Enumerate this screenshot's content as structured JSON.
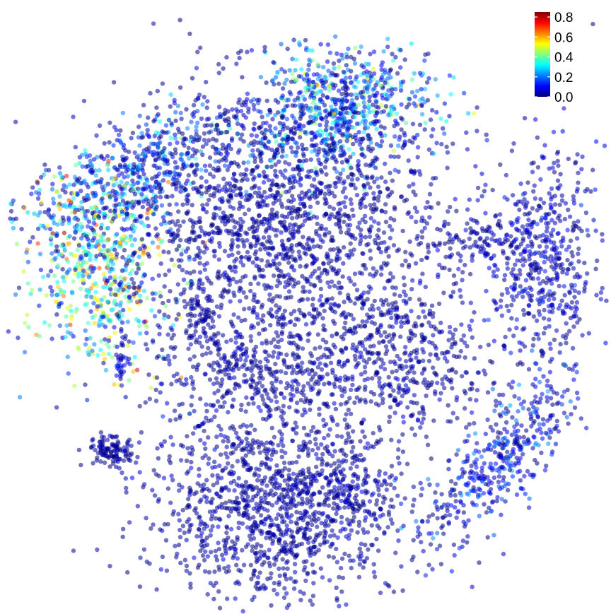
{
  "chart_data": {
    "type": "scatter",
    "title": "",
    "xlabel": "",
    "ylabel": "",
    "axes_visible": false,
    "grid": false,
    "point_alpha": 0.55,
    "colorbar": {
      "placement": "top-right",
      "range": [
        0.0,
        0.85
      ],
      "ticks": [
        0.0,
        0.2,
        0.4,
        0.6,
        0.8
      ],
      "tick_labels": [
        "0.0",
        "0.2",
        "0.4",
        "0.6",
        "0.8"
      ],
      "colormap": [
        "#00007f",
        "#0000ff",
        "#007fff",
        "#00ffff",
        "#7fff7f",
        "#ffff00",
        "#ff7f00",
        "#ff0000",
        "#7f0000"
      ]
    },
    "clusters": [
      {
        "name": "top-center",
        "x": 56.0,
        "y": 82.5,
        "sx": 8.0,
        "sy": 5.0,
        "angle": 15,
        "n": 650,
        "mean_value": 0.15,
        "value_spread": 0.15
      },
      {
        "name": "top-center-arm",
        "x": 51.0,
        "y": 88.0,
        "sx": 2.5,
        "sy": 4.0,
        "angle": 0,
        "n": 60,
        "mean_value": 0.22,
        "value_spread": 0.15
      },
      {
        "name": "top-left-upper",
        "x": 20.5,
        "y": 72.0,
        "sx": 11.5,
        "sy": 4.0,
        "angle": 28,
        "n": 560,
        "mean_value": 0.12,
        "value_spread": 0.12
      },
      {
        "name": "top-left-lower",
        "x": 15.0,
        "y": 55.5,
        "sx": 6.0,
        "sy": 8.0,
        "angle": 0,
        "n": 560,
        "mean_value": 0.34,
        "value_spread": 0.18
      },
      {
        "name": "left-tail",
        "x": 19.0,
        "y": 41.0,
        "sx": 0.6,
        "sy": 3.0,
        "angle": 0,
        "n": 40,
        "mean_value": 0.06,
        "value_spread": 0.06
      },
      {
        "name": "left-small-blob",
        "x": 17.0,
        "y": 25.0,
        "sx": 2.0,
        "sy": 1.3,
        "angle": 0,
        "n": 110,
        "mean_value": 0.02,
        "value_spread": 0.03
      },
      {
        "name": "center-main",
        "x": 45.5,
        "y": 63.5,
        "sx": 13.5,
        "sy": 11.5,
        "angle": 0,
        "n": 1800,
        "mean_value": 0.02,
        "value_spread": 0.03
      },
      {
        "name": "center-lower-left",
        "x": 41.0,
        "y": 38.0,
        "sx": 7.5,
        "sy": 5.0,
        "angle": 0,
        "n": 380,
        "mean_value": 0.02,
        "value_spread": 0.03
      },
      {
        "name": "center-lower-right",
        "x": 64.5,
        "y": 40.5,
        "sx": 8.0,
        "sy": 7.0,
        "angle": 0,
        "n": 560,
        "mean_value": 0.02,
        "value_spread": 0.03
      },
      {
        "name": "center-left-blob",
        "x": 32.5,
        "y": 47.5,
        "sx": 1.8,
        "sy": 2.2,
        "angle": 0,
        "n": 70,
        "mean_value": 0.02,
        "value_spread": 0.02
      },
      {
        "name": "right",
        "x": 90.0,
        "y": 57.0,
        "sx": 4.5,
        "sy": 9.5,
        "angle": 0,
        "n": 520,
        "mean_value": 0.04,
        "value_spread": 0.05
      },
      {
        "name": "right-arm",
        "x": 81.0,
        "y": 60.5,
        "sx": 5.0,
        "sy": 2.0,
        "angle": 0,
        "n": 110,
        "mean_value": 0.03,
        "value_spread": 0.04
      },
      {
        "name": "bottom-right",
        "x": 83.0,
        "y": 24.0,
        "sx": 3.5,
        "sy": 9.5,
        "angle": -38,
        "n": 420,
        "mean_value": 0.08,
        "value_spread": 0.08
      },
      {
        "name": "bottom-center",
        "x": 45.0,
        "y": 15.5,
        "sx": 11.0,
        "sy": 8.0,
        "angle": 0,
        "n": 1300,
        "mean_value": 0.02,
        "value_spread": 0.03
      },
      {
        "name": "bottom-center-right",
        "x": 58.5,
        "y": 18.0,
        "sx": 2.8,
        "sy": 3.0,
        "angle": 0,
        "n": 90,
        "mean_value": 0.03,
        "value_spread": 0.04
      }
    ]
  }
}
